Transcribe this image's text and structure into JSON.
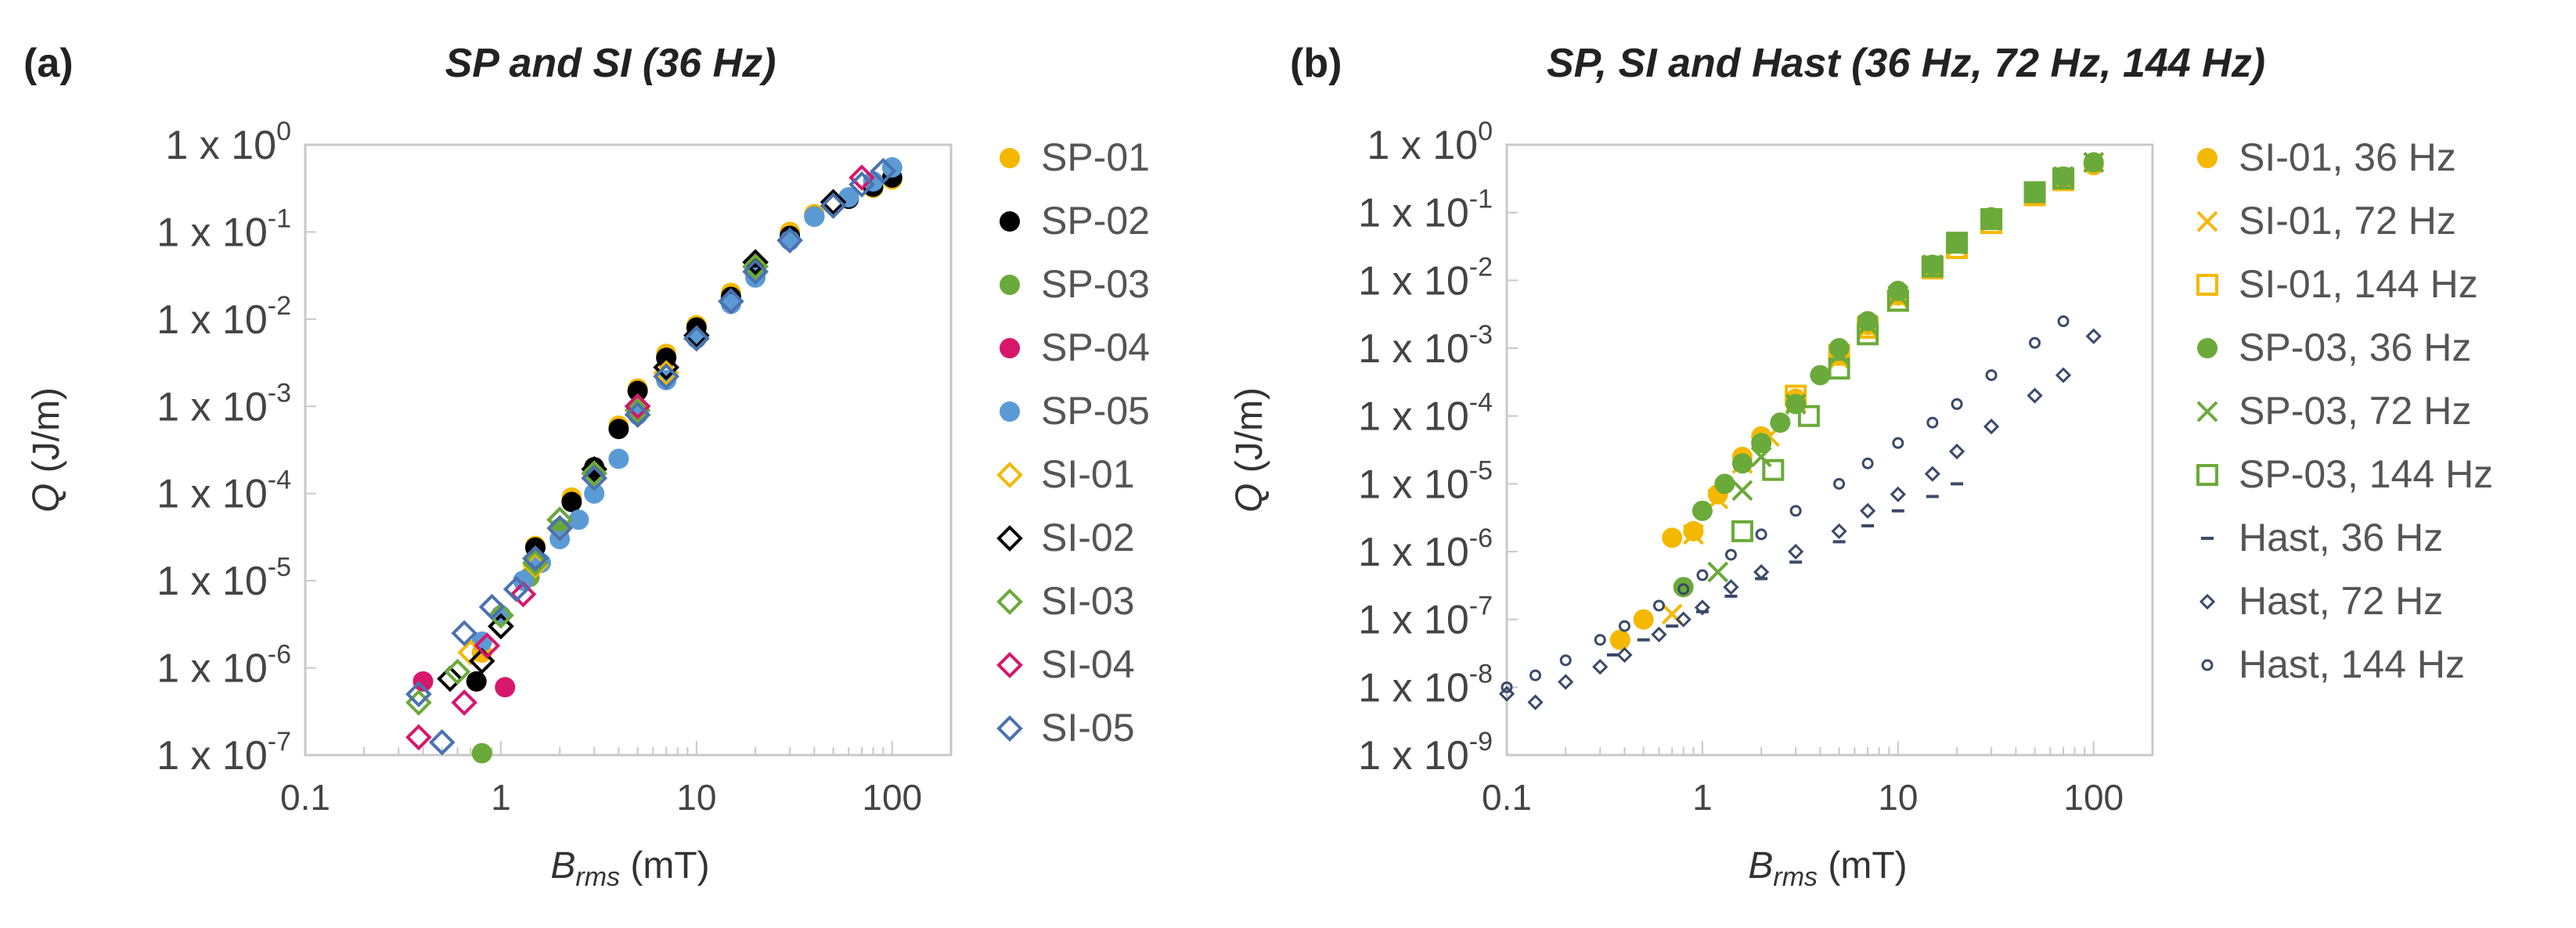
{
  "chart_data": [
    {
      "type": "scatter",
      "panel_label": "(a)",
      "title": "SP and SI (36 Hz)",
      "xlabel_main": "B",
      "xlabel_sub": "rms",
      "xlabel_unit": " (mT)",
      "ylabel_main": "Q",
      "ylabel_unit": " (J/m)",
      "xscale": "log",
      "yscale": "log",
      "xlim": [
        0.1,
        200
      ],
      "ylim": [
        1e-07,
        1
      ],
      "x_tick_labels": [
        "0.1",
        "1",
        "10",
        "100"
      ],
      "y_tick_base": "1 x 10",
      "y_tick_exponents": [
        "0",
        "-1",
        "-2",
        "-3",
        "-4",
        "-5",
        "-6",
        "-7"
      ],
      "legend_position": "right",
      "series": [
        {
          "name": "SP-01",
          "marker": "circle-filled",
          "color": "#f5b800",
          "x": [
            0.8,
            1.5,
            2.3,
            3.0,
            4.0,
            5.0,
            7.0,
            10,
            15,
            20,
            30,
            40,
            60,
            80,
            100
          ],
          "y": [
            1.5e-06,
            2.5e-05,
            9e-05,
            0.0002,
            0.0006,
            0.0016,
            0.004,
            0.0085,
            0.02,
            0.04,
            0.1,
            0.16,
            0.24,
            0.32,
            0.4
          ]
        },
        {
          "name": "SP-02",
          "marker": "circle-filled",
          "color": "#000000",
          "x": [
            0.75,
            1.5,
            2.3,
            3.0,
            4.0,
            5.0,
            7.0,
            10,
            15,
            20,
            30,
            40,
            60,
            80,
            100
          ],
          "y": [
            7e-07,
            2.4e-05,
            8e-05,
            0.0002,
            0.00055,
            0.0015,
            0.0036,
            0.008,
            0.018,
            0.038,
            0.09,
            0.15,
            0.24,
            0.33,
            0.42
          ]
        },
        {
          "name": "SP-03",
          "marker": "circle-filled",
          "color": "#6aaa3a",
          "x": [
            0.8,
            1.4,
            2.0
          ],
          "y": [
            1.05e-07,
            1.1e-05,
            4e-05
          ]
        },
        {
          "name": "SP-04",
          "marker": "circle-filled",
          "color": "#d6176c",
          "x": [
            0.4,
            1.05
          ],
          "y": [
            7e-07,
            6e-07
          ]
        },
        {
          "name": "SP-05",
          "marker": "circle-filled",
          "color": "#5b9bd5",
          "x": [
            0.8,
            1.0,
            1.3,
            1.6,
            2.0,
            2.5,
            3.0,
            4.0,
            5.0,
            7.0,
            10,
            15,
            20,
            30,
            40,
            60,
            80,
            100
          ],
          "y": [
            2e-06,
            4e-06,
            1e-05,
            1.6e-05,
            3e-05,
            5e-05,
            0.0001,
            0.00025,
            0.0008,
            0.002,
            0.006,
            0.015,
            0.03,
            0.08,
            0.15,
            0.25,
            0.38,
            0.55
          ]
        },
        {
          "name": "SI-01",
          "marker": "diamond-open",
          "color": "#f5b800",
          "x": [
            0.7,
            1.0,
            1.5,
            2.0,
            3.0,
            5.0,
            7.0,
            10,
            20,
            50
          ],
          "y": [
            1.5e-06,
            4e-06,
            1.5e-05,
            4e-05,
            0.00015,
            0.0008,
            0.0024,
            0.006,
            0.04,
            0.2
          ]
        },
        {
          "name": "SI-02",
          "marker": "diamond-open",
          "color": "#000000",
          "x": [
            0.55,
            0.8,
            1.0,
            1.5,
            2.0,
            3.0,
            5.0,
            7.0,
            10,
            20,
            50
          ],
          "y": [
            7.5e-07,
            1.2e-06,
            3e-06,
            1.8e-05,
            5e-05,
            0.00019,
            0.001,
            0.0028,
            0.0065,
            0.045,
            0.22
          ]
        },
        {
          "name": "SI-03",
          "marker": "diamond-open",
          "color": "#6aaa3a",
          "x": [
            0.38,
            0.6,
            1.0,
            1.5,
            2.0,
            3.0,
            5.0,
            10,
            20
          ],
          "y": [
            4e-07,
            9e-07,
            4e-06,
            1.6e-05,
            5e-05,
            0.00017,
            0.0009,
            0.006,
            0.04
          ]
        },
        {
          "name": "SI-04",
          "marker": "diamond-open",
          "color": "#d6176c",
          "x": [
            0.38,
            0.65,
            0.85,
            1.3,
            5.0,
            70
          ],
          "y": [
            1.6e-07,
            4e-07,
            1.8e-06,
            7e-06,
            0.001,
            0.42
          ]
        },
        {
          "name": "SI-05",
          "marker": "diamond-open",
          "color": "#4a72b0",
          "x": [
            0.38,
            0.5,
            0.65,
            0.9,
            1.2,
            1.5,
            2.0,
            3.0,
            5.0,
            7.0,
            10,
            15,
            20,
            30,
            50,
            70,
            90
          ],
          "y": [
            5e-07,
            1.4e-07,
            2.5e-06,
            5e-06,
            8e-06,
            1.8e-05,
            4e-05,
            0.00015,
            0.0008,
            0.0022,
            0.006,
            0.016,
            0.035,
            0.08,
            0.2,
            0.35,
            0.5
          ]
        }
      ]
    },
    {
      "type": "scatter",
      "panel_label": "(b)",
      "title": "SP, SI and Hast (36 Hz, 72 Hz, 144 Hz)",
      "xlabel_main": "B",
      "xlabel_sub": "rms",
      "xlabel_unit": " (mT)",
      "ylabel_main": "Q",
      "ylabel_unit": " (J/m)",
      "xscale": "log",
      "yscale": "log",
      "xlim": [
        0.1,
        200
      ],
      "ylim": [
        1e-09,
        1
      ],
      "x_tick_labels": [
        "0.1",
        "1",
        "10",
        "100"
      ],
      "y_tick_base": "1 x 10",
      "y_tick_exponents": [
        "0",
        "-1",
        "-2",
        "-3",
        "-4",
        "-5",
        "-6",
        "-7",
        "-8",
        "-9"
      ],
      "legend_position": "right",
      "series": [
        {
          "name": "SI-01, 36 Hz",
          "marker": "circle-filled",
          "color": "#f5b800",
          "x": [
            0.38,
            0.5,
            0.7,
            0.9,
            1.2,
            1.6,
            2.0,
            3.0,
            5.0,
            7.0,
            10,
            15,
            20,
            30,
            50,
            70,
            100
          ],
          "y": [
            5e-08,
            1e-07,
            1.6e-06,
            2e-06,
            7e-06,
            2.5e-05,
            5e-05,
            0.00018,
            0.0008,
            0.0022,
            0.006,
            0.016,
            0.035,
            0.08,
            0.18,
            0.3,
            0.5
          ]
        },
        {
          "name": "SI-01, 72 Hz",
          "marker": "x",
          "color": "#f5b800",
          "x": [
            0.7,
            0.9,
            1.2,
            1.6,
            2.2,
            3.0,
            5.0,
            7.0,
            10,
            15,
            20,
            30,
            50,
            70,
            100
          ],
          "y": [
            1.2e-07,
            1.8e-06,
            6e-06,
            2e-05,
            5e-05,
            0.00016,
            0.0007,
            0.002,
            0.0055,
            0.015,
            0.032,
            0.075,
            0.18,
            0.3,
            0.55
          ]
        },
        {
          "name": "SI-01, 144 Hz",
          "marker": "square-open",
          "color": "#f5b800",
          "x": [
            3.0,
            5.0,
            7.0,
            10,
            15,
            20,
            30,
            50,
            70
          ],
          "y": [
            0.0002,
            0.0008,
            0.002,
            0.005,
            0.015,
            0.03,
            0.07,
            0.18,
            0.3
          ]
        },
        {
          "name": "SP-03, 36 Hz",
          "marker": "circle-filled",
          "color": "#6aaa3a",
          "x": [
            0.8,
            1.0,
            1.3,
            1.6,
            2.0,
            2.5,
            3.0,
            4.0,
            5.0,
            7.0,
            10,
            15,
            20,
            30,
            50,
            70,
            100
          ],
          "y": [
            3e-07,
            4e-06,
            1e-05,
            2e-05,
            4e-05,
            8e-05,
            0.00015,
            0.0004,
            0.001,
            0.0025,
            0.007,
            0.017,
            0.036,
            0.085,
            0.2,
            0.34,
            0.55
          ]
        },
        {
          "name": "SP-03, 72 Hz",
          "marker": "x",
          "color": "#6aaa3a",
          "x": [
            1.2,
            1.6,
            2.0,
            3.0,
            5.0,
            7.0,
            10,
            15,
            20,
            30,
            50,
            70,
            100
          ],
          "y": [
            5e-07,
            8e-06,
            2.5e-05,
            0.00015,
            0.0008,
            0.0022,
            0.006,
            0.017,
            0.035,
            0.08,
            0.2,
            0.34,
            0.55
          ]
        },
        {
          "name": "SP-03, 144 Hz",
          "marker": "square-open",
          "color": "#6aaa3a",
          "x": [
            1.6,
            2.3,
            3.5,
            5.0,
            7.0,
            10,
            15,
            20,
            30,
            50,
            70
          ],
          "y": [
            2e-06,
            1.6e-05,
            0.0001,
            0.0005,
            0.0016,
            0.005,
            0.016,
            0.036,
            0.08,
            0.2,
            0.32
          ]
        },
        {
          "name": "Hast, 36 Hz",
          "marker": "dash",
          "color": "#3a4a6a",
          "x": [
            0.35,
            0.5,
            0.7,
            1.0,
            1.4,
            2.0,
            3.0,
            5.0,
            7.0,
            10,
            15,
            20
          ],
          "y": [
            3e-08,
            5e-08,
            8e-08,
            1.3e-07,
            2.2e-07,
            4e-07,
            7e-07,
            1.4e-06,
            2.4e-06,
            4e-06,
            6.5e-06,
            1e-05
          ]
        },
        {
          "name": "Hast, 72 Hz",
          "marker": "diamond-open-small",
          "color": "#3a4a6a",
          "x": [
            0.1,
            0.14,
            0.2,
            0.3,
            0.4,
            0.6,
            0.8,
            1.0,
            1.4,
            2.0,
            3.0,
            5.0,
            7.0,
            10,
            15,
            20,
            30,
            50,
            70,
            100
          ],
          "y": [
            8e-09,
            6e-09,
            1.2e-08,
            2e-08,
            3e-08,
            6e-08,
            1e-07,
            1.5e-07,
            3e-07,
            5e-07,
            1e-06,
            2e-06,
            4e-06,
            7e-06,
            1.4e-05,
            3e-05,
            7e-05,
            0.0002,
            0.0004,
            0.0015
          ]
        },
        {
          "name": "Hast, 144 Hz",
          "marker": "circle-open-small",
          "color": "#3a4a6a",
          "x": [
            0.1,
            0.14,
            0.2,
            0.3,
            0.4,
            0.6,
            0.8,
            1.0,
            1.4,
            2.0,
            3.0,
            5.0,
            7.0,
            10,
            15,
            20,
            30,
            50,
            70
          ],
          "y": [
            1e-08,
            1.5e-08,
            2.5e-08,
            5e-08,
            8e-08,
            1.6e-07,
            2.8e-07,
            4.5e-07,
            9e-07,
            1.8e-06,
            4e-06,
            1e-05,
            2e-05,
            4e-05,
            8e-05,
            0.00015,
            0.0004,
            0.0012,
            0.0025
          ]
        }
      ]
    }
  ]
}
